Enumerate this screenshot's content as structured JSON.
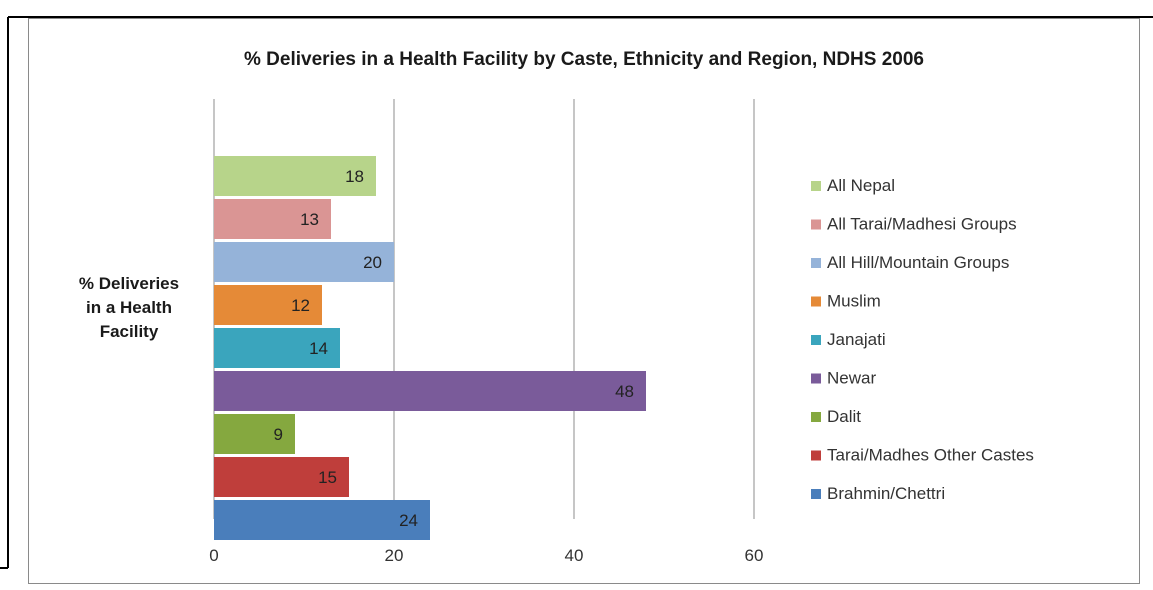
{
  "chart_data": {
    "type": "bar",
    "orientation": "horizontal",
    "title": "% Deliveries in a Health Facility by Caste, Ethnicity and Region, NDHS 2006",
    "category_label": "% Deliveries in a Health Facility",
    "xlim": [
      0,
      60
    ],
    "x_ticks": [
      0,
      20,
      40,
      60
    ],
    "grid": true,
    "legend_position": "right",
    "series": [
      {
        "name": "All Nepal",
        "value": 18,
        "color": "#b7d48a"
      },
      {
        "name": "All Tarai/Madhesi Groups",
        "value": 13,
        "color": "#da9594"
      },
      {
        "name": "All Hill/Mountain Groups",
        "value": 20,
        "color": "#95b3d9"
      },
      {
        "name": "Muslim",
        "value": 12,
        "color": "#e58a37"
      },
      {
        "name": "Janajati",
        "value": 14,
        "color": "#3aa5bd"
      },
      {
        "name": "Newar",
        "value": 48,
        "color": "#7a5b9a"
      },
      {
        "name": "Dalit",
        "value": 9,
        "color": "#85a83f"
      },
      {
        "name": "Tarai/Madhes Other Castes",
        "value": 15,
        "color": "#bf3e3b"
      },
      {
        "name": "Brahmin/Chettri",
        "value": 24,
        "color": "#4a7ebb"
      }
    ]
  }
}
